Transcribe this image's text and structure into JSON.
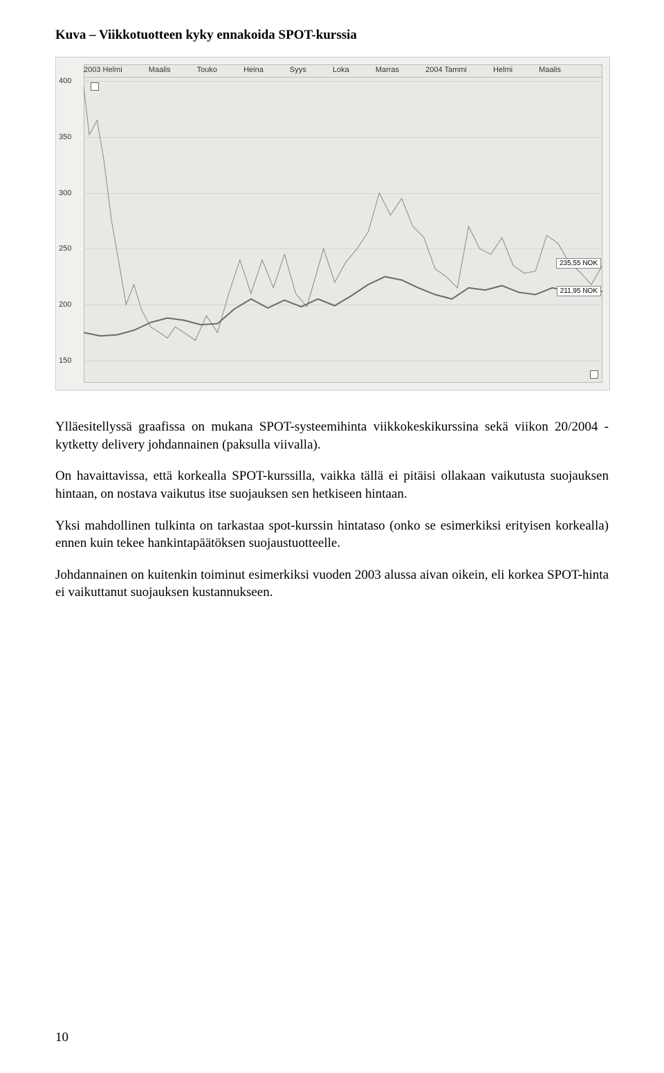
{
  "title": "Kuva – Viikkotuotteen kyky ennakoida SPOT-kurssia",
  "paragraphs": {
    "p1": "Ylläesitellyssä graafissa on mukana SPOT-systeemihinta viikkokeskikurssina sekä viikon 20/2004 - kytketty delivery johdannainen (paksulla viivalla).",
    "p2": "On havaittavissa, että korkealla SPOT-kurssilla, vaikka tällä ei pitäisi ollakaan vaikutusta suojauksen hintaan, on nostava vaikutus itse suojauksen sen hetkiseen hintaan.",
    "p3": "Yksi mahdollinen tulkinta on tarkastaa spot-kurssin hintataso (onko se esimerkiksi erityisen korkealla) ennen kuin tekee hankintapäätöksen suojaustuotteelle.",
    "p4": "Johdannainen on kuitenkin toiminut esimerkiksi vuoden 2003 alussa aivan oikein, eli korkea SPOT-hinta ei vaikuttanut suojauksen kustannukseen."
  },
  "page_number": "10",
  "chart": {
    "type": "line",
    "background_color": "#e8e8e4",
    "grid_color": "#d4d4d0",
    "y_ticks": [
      150,
      200,
      250,
      300,
      350,
      400
    ],
    "ylim": [
      130,
      415
    ],
    "x_labels": [
      "2003 Helmi",
      "Maalis",
      "Touko",
      "Heina",
      "Syys",
      "Loka",
      "Marras",
      "2004 Tammi",
      "Helmi",
      "Maalis"
    ],
    "value_box_1": "235,55 NOK",
    "value_box_2": "211,95 NOK",
    "spot_color": "#888888",
    "spot_width": 1,
    "deriv_color": "#6a6a6a",
    "deriv_width": 2,
    "spot_points": [
      [
        0,
        395
      ],
      [
        5,
        352
      ],
      [
        12,
        365
      ],
      [
        18,
        330
      ],
      [
        25,
        275
      ],
      [
        32,
        235
      ],
      [
        38,
        200
      ],
      [
        45,
        218
      ],
      [
        52,
        195
      ],
      [
        60,
        180
      ],
      [
        68,
        175
      ],
      [
        75,
        170
      ],
      [
        82,
        180
      ],
      [
        90,
        175
      ],
      [
        100,
        168
      ],
      [
        110,
        190
      ],
      [
        120,
        175
      ],
      [
        130,
        210
      ],
      [
        140,
        240
      ],
      [
        150,
        210
      ],
      [
        160,
        240
      ],
      [
        170,
        215
      ],
      [
        180,
        245
      ],
      [
        190,
        210
      ],
      [
        200,
        198
      ],
      [
        215,
        250
      ],
      [
        225,
        220
      ],
      [
        235,
        238
      ],
      [
        245,
        250
      ],
      [
        255,
        265
      ],
      [
        265,
        300
      ],
      [
        275,
        280
      ],
      [
        285,
        295
      ],
      [
        295,
        270
      ],
      [
        305,
        260
      ],
      [
        315,
        232
      ],
      [
        325,
        225
      ],
      [
        335,
        215
      ],
      [
        345,
        270
      ],
      [
        355,
        250
      ],
      [
        365,
        245
      ],
      [
        375,
        260
      ],
      [
        385,
        235
      ],
      [
        395,
        228
      ],
      [
        405,
        230
      ],
      [
        415,
        262
      ],
      [
        425,
        255
      ],
      [
        435,
        238
      ],
      [
        445,
        229
      ],
      [
        455,
        218
      ],
      [
        465,
        235
      ]
    ],
    "deriv_points": [
      [
        0,
        175
      ],
      [
        15,
        172
      ],
      [
        30,
        173
      ],
      [
        45,
        177
      ],
      [
        60,
        184
      ],
      [
        75,
        188
      ],
      [
        90,
        186
      ],
      [
        105,
        182
      ],
      [
        120,
        183
      ],
      [
        135,
        196
      ],
      [
        150,
        205
      ],
      [
        165,
        197
      ],
      [
        180,
        204
      ],
      [
        195,
        198
      ],
      [
        210,
        205
      ],
      [
        225,
        199
      ],
      [
        240,
        208
      ],
      [
        255,
        218
      ],
      [
        270,
        225
      ],
      [
        285,
        222
      ],
      [
        300,
        215
      ],
      [
        315,
        209
      ],
      [
        330,
        205
      ],
      [
        345,
        215
      ],
      [
        360,
        213
      ],
      [
        375,
        217
      ],
      [
        390,
        211
      ],
      [
        405,
        209
      ],
      [
        420,
        215
      ],
      [
        435,
        212
      ],
      [
        450,
        210
      ],
      [
        465,
        212
      ]
    ]
  }
}
